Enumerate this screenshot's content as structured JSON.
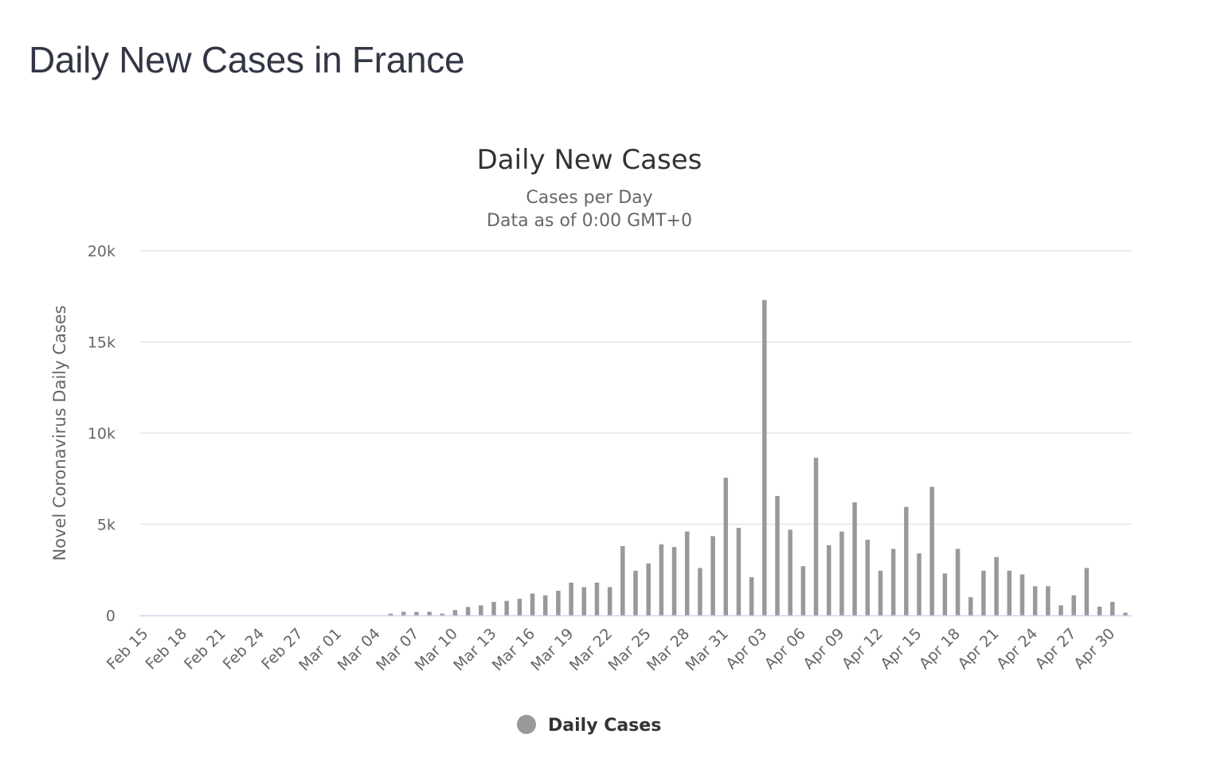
{
  "page": {
    "heading": "Daily New Cases in France"
  },
  "chart_data": {
    "type": "bar",
    "title": "Daily New Cases",
    "subtitle_lines": [
      "Cases per Day",
      "Data as of 0:00 GMT+0"
    ],
    "ylabel": "Novel Coronavirus Daily Cases",
    "xlabel": "",
    "ylim": [
      0,
      20000
    ],
    "y_ticks": [
      {
        "value": 0,
        "label": "0"
      },
      {
        "value": 5000,
        "label": "5k"
      },
      {
        "value": 10000,
        "label": "10k"
      },
      {
        "value": 15000,
        "label": "15k"
      },
      {
        "value": 20000,
        "label": "20k"
      }
    ],
    "grid": true,
    "legend": "bottom-center",
    "categories": [
      "Feb 15",
      "Feb 16",
      "Feb 17",
      "Feb 18",
      "Feb 19",
      "Feb 20",
      "Feb 21",
      "Feb 22",
      "Feb 23",
      "Feb 24",
      "Feb 25",
      "Feb 26",
      "Feb 27",
      "Feb 28",
      "Feb 29",
      "Mar 01",
      "Mar 02",
      "Mar 03",
      "Mar 04",
      "Mar 05",
      "Mar 06",
      "Mar 07",
      "Mar 08",
      "Mar 09",
      "Mar 10",
      "Mar 11",
      "Mar 12",
      "Mar 13",
      "Mar 14",
      "Mar 15",
      "Mar 16",
      "Mar 17",
      "Mar 18",
      "Mar 19",
      "Mar 20",
      "Mar 21",
      "Mar 22",
      "Mar 23",
      "Mar 24",
      "Mar 25",
      "Mar 26",
      "Mar 27",
      "Mar 28",
      "Mar 29",
      "Mar 30",
      "Mar 31",
      "Apr 01",
      "Apr 02",
      "Apr 03",
      "Apr 04",
      "Apr 05",
      "Apr 06",
      "Apr 07",
      "Apr 08",
      "Apr 09",
      "Apr 10",
      "Apr 11",
      "Apr 12",
      "Apr 13",
      "Apr 14",
      "Apr 15",
      "Apr 16",
      "Apr 17",
      "Apr 18",
      "Apr 19",
      "Apr 20",
      "Apr 21",
      "Apr 22",
      "Apr 23",
      "Apr 24",
      "Apr 25",
      "Apr 26",
      "Apr 27",
      "Apr 28",
      "Apr 29",
      "Apr 30",
      "May 01"
    ],
    "x_tick_labels": [
      "Feb 15",
      "Feb 18",
      "Feb 21",
      "Feb 24",
      "Feb 27",
      "Mar 01",
      "Mar 04",
      "Mar 07",
      "Mar 10",
      "Mar 13",
      "Mar 16",
      "Mar 19",
      "Mar 22",
      "Mar 25",
      "Mar 28",
      "Mar 31",
      "Apr 03",
      "Apr 06",
      "Apr 09",
      "Apr 12",
      "Apr 15",
      "Apr 18",
      "Apr 21",
      "Apr 24",
      "Apr 27",
      "Apr 30"
    ],
    "series": [
      {
        "name": "Daily Cases",
        "color": "#999999",
        "values": [
          0,
          0,
          0,
          0,
          0,
          0,
          0,
          0,
          0,
          0,
          0,
          0,
          0,
          0,
          0,
          0,
          0,
          0,
          0,
          100,
          200,
          190,
          200,
          100,
          290,
          460,
          550,
          740,
          800,
          910,
          1200,
          1100,
          1350,
          1800,
          1550,
          1800,
          1550,
          3800,
          2450,
          2850,
          3900,
          3750,
          4600,
          2600,
          4350,
          7550,
          4800,
          2100,
          17300,
          6550,
          4700,
          2700,
          8650,
          3850,
          4600,
          6200,
          4150,
          2450,
          3650,
          5950,
          3400,
          7050,
          2300,
          3650,
          1000,
          2450,
          3200,
          2450,
          2250,
          1600,
          1600,
          550,
          1100,
          2600,
          480,
          740,
          150
        ]
      }
    ]
  }
}
